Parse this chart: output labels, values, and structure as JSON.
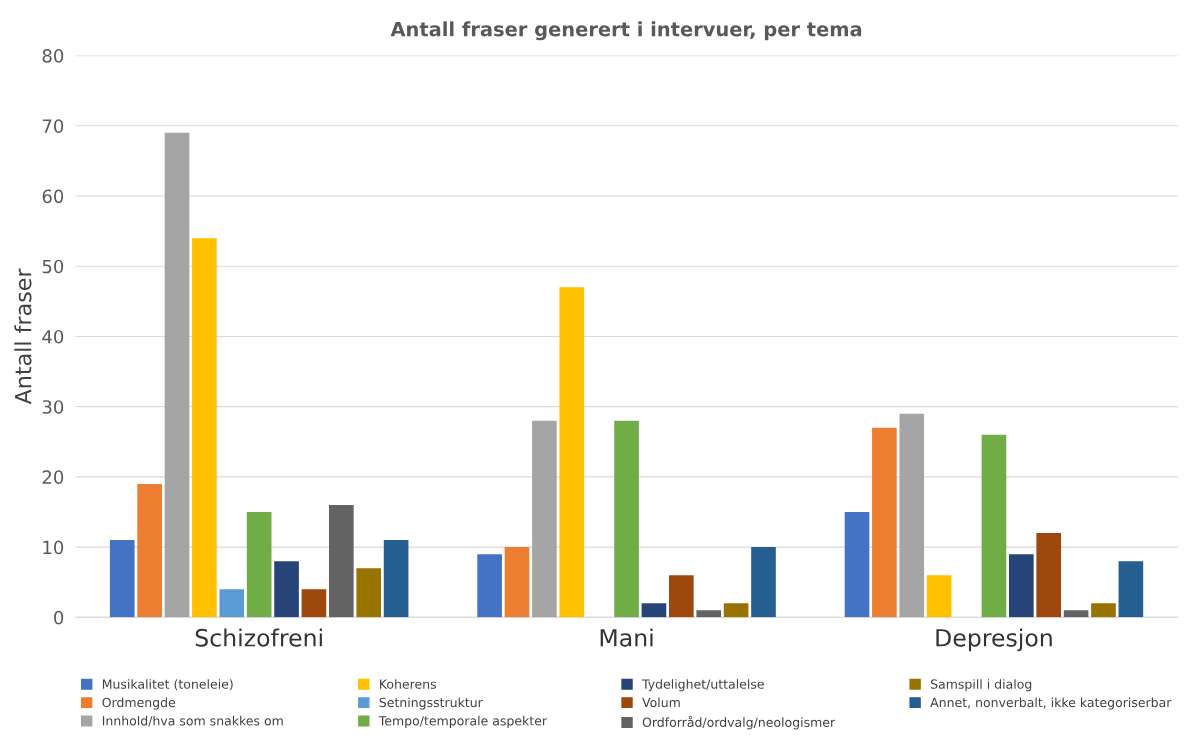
{
  "chart_data": {
    "type": "bar",
    "title": "Antall fraser generert i intervuer, per tema",
    "ylabel": "Antall fraser",
    "categories": [
      "Schizofreni",
      "Mani",
      "Depresjon"
    ],
    "series": [
      {
        "name": "Musikalitet (toneleie)",
        "color": "#4472c4",
        "values": [
          11,
          9,
          15
        ]
      },
      {
        "name": "Ordmengde",
        "color": "#ed7d31",
        "values": [
          19,
          10,
          27
        ]
      },
      {
        "name": "Innhold/hva som snakkes om",
        "color": "#a5a5a5",
        "values": [
          69,
          28,
          29
        ]
      },
      {
        "name": "Koherens",
        "color": "#ffc000",
        "values": [
          54,
          47,
          6
        ]
      },
      {
        "name": "Setningsstruktur",
        "color": "#5b9bd5",
        "values": [
          4,
          0,
          0
        ]
      },
      {
        "name": "Tempo/temporale aspekter",
        "color": "#70ad47",
        "values": [
          15,
          28,
          26
        ]
      },
      {
        "name": "Tydelighet/uttalelse",
        "color": "#264478",
        "values": [
          8,
          2,
          9
        ]
      },
      {
        "name": "Volum",
        "color": "#9e480e",
        "values": [
          4,
          6,
          12
        ]
      },
      {
        "name": "Ordforråd/ordvalg/neologismer",
        "color": "#636363",
        "values": [
          16,
          1,
          1
        ]
      },
      {
        "name": "Samspill i dialog",
        "color": "#997300",
        "values": [
          7,
          2,
          2
        ]
      },
      {
        "name": "Annet, nonverbalt, ikke kategoriserbar",
        "color": "#255e91",
        "values": [
          11,
          10,
          8
        ]
      }
    ],
    "ylim": [
      0,
      80
    ],
    "yticks": [
      0,
      10,
      20,
      30,
      40,
      50,
      60,
      70,
      80
    ],
    "grid": "y",
    "legend": "bottom"
  }
}
